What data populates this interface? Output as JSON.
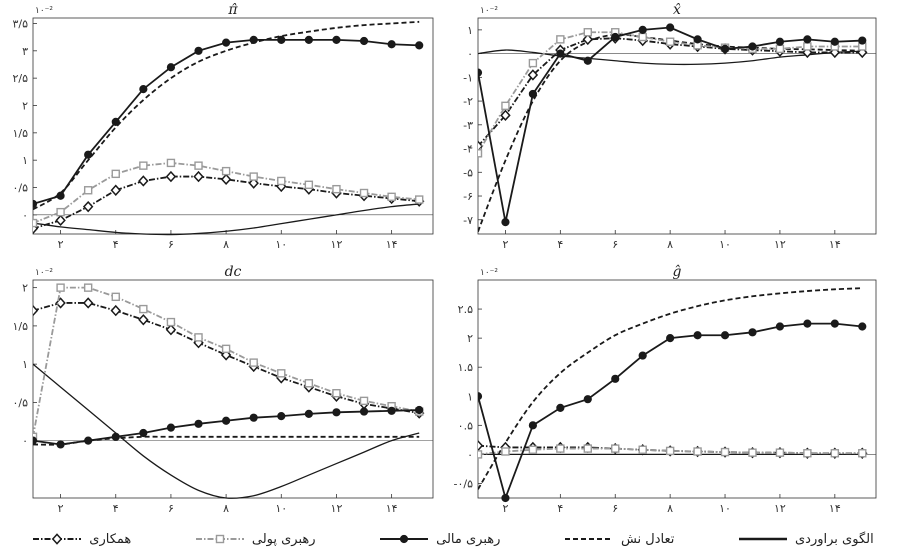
{
  "chart_data": [
    {
      "type": "line",
      "title": "π̂",
      "multiplier": "۱۰⁻²",
      "xlim": [
        1,
        15.5
      ],
      "ylim": [
        -0.35,
        3.6
      ],
      "x_ticks": [
        2,
        4,
        6,
        8,
        10,
        12,
        14
      ],
      "x_tick_labels": [
        "۲",
        "۴",
        "۶",
        "۸",
        "۱۰",
        "۱۲",
        "۱۴"
      ],
      "y_ticks": [
        0,
        0.5,
        1,
        1.5,
        2,
        2.5,
        3,
        3.5
      ],
      "y_tick_labels": [
        "۰",
        "۰/۵",
        "۱",
        "۱/۵",
        "۲",
        "۲/۵",
        "۳",
        "۳/۵"
      ],
      "zero_line": true,
      "series": [
        {
          "key": "baseline",
          "x": [
            1,
            2,
            3,
            4,
            5,
            6,
            7,
            8,
            9,
            10,
            11,
            12,
            13,
            14,
            15
          ],
          "values": [
            -0.15,
            -0.22,
            -0.27,
            -0.32,
            -0.35,
            -0.36,
            -0.34,
            -0.3,
            -0.24,
            -0.16,
            -0.08,
            0.0,
            0.08,
            0.15,
            0.2
          ]
        },
        {
          "key": "nash",
          "x": [
            1,
            2,
            3,
            4,
            5,
            6,
            7,
            8,
            9,
            10,
            11,
            12,
            13,
            14,
            15
          ],
          "values": [
            0.1,
            0.4,
            1.0,
            1.6,
            2.1,
            2.5,
            2.8,
            3.0,
            3.15,
            3.27,
            3.35,
            3.42,
            3.47,
            3.5,
            3.53
          ]
        },
        {
          "key": "fiscal",
          "x": [
            1,
            2,
            3,
            4,
            5,
            6,
            7,
            8,
            9,
            10,
            11,
            12,
            13,
            14,
            15
          ],
          "values": [
            0.2,
            0.35,
            1.1,
            1.7,
            2.3,
            2.7,
            3.0,
            3.15,
            3.2,
            3.2,
            3.2,
            3.2,
            3.18,
            3.12,
            3.1
          ]
        },
        {
          "key": "monetary",
          "x": [
            1,
            2,
            3,
            4,
            5,
            6,
            7,
            8,
            9,
            10,
            11,
            12,
            13,
            14,
            15
          ],
          "values": [
            -0.15,
            0.05,
            0.45,
            0.75,
            0.9,
            0.95,
            0.9,
            0.8,
            0.7,
            0.62,
            0.55,
            0.47,
            0.4,
            0.33,
            0.28
          ]
        },
        {
          "key": "cooperation",
          "x": [
            1,
            2,
            3,
            4,
            5,
            6,
            7,
            8,
            9,
            10,
            11,
            12,
            13,
            14,
            15
          ],
          "values": [
            -0.25,
            -0.1,
            0.15,
            0.45,
            0.62,
            0.7,
            0.7,
            0.65,
            0.58,
            0.52,
            0.47,
            0.4,
            0.35,
            0.3,
            0.25
          ]
        }
      ]
    },
    {
      "type": "line",
      "title": "x̂",
      "multiplier": "۱۰⁻²",
      "xlim": [
        1,
        15.5
      ],
      "ylim": [
        -7.6,
        1.5
      ],
      "x_ticks": [
        2,
        4,
        6,
        8,
        10,
        12,
        14
      ],
      "x_tick_labels": [
        "۲",
        "۴",
        "۶",
        "۸",
        "۱۰",
        "۱۲",
        "۱۴"
      ],
      "y_ticks": [
        -7,
        -6,
        -5,
        -4,
        -3,
        -2,
        -1,
        0,
        1
      ],
      "y_tick_labels": [
        "-۷",
        "-۶",
        "-۵",
        "-۴",
        "-۳",
        "-۲",
        "-۱",
        "۰",
        "۱"
      ],
      "zero_line": true,
      "series": [
        {
          "key": "baseline",
          "x": [
            1,
            2,
            3,
            4,
            5,
            6,
            7,
            8,
            9,
            10,
            11,
            12,
            13,
            14,
            15
          ],
          "values": [
            0.0,
            0.15,
            0.05,
            -0.1,
            -0.2,
            -0.3,
            -0.4,
            -0.45,
            -0.45,
            -0.4,
            -0.3,
            -0.15,
            -0.05,
            0.05,
            0.1
          ]
        },
        {
          "key": "nash",
          "x": [
            1,
            2,
            3,
            4,
            5,
            6,
            7,
            8,
            9,
            10,
            11,
            12,
            13,
            14,
            15
          ],
          "values": [
            -7.5,
            -4.5,
            -2.0,
            -0.3,
            0.5,
            0.8,
            0.7,
            0.55,
            0.4,
            0.3,
            0.25,
            0.2,
            0.18,
            0.15,
            0.12
          ]
        },
        {
          "key": "fiscal",
          "x": [
            1,
            2,
            3,
            4,
            5,
            6,
            7,
            8,
            9,
            10,
            11,
            12,
            13,
            14,
            15
          ],
          "values": [
            -0.8,
            -7.1,
            -1.7,
            0.0,
            -0.3,
            0.7,
            1.0,
            1.1,
            0.6,
            0.2,
            0.3,
            0.5,
            0.6,
            0.5,
            0.55
          ]
        },
        {
          "key": "monetary",
          "x": [
            1,
            2,
            3,
            4,
            5,
            6,
            7,
            8,
            9,
            10,
            11,
            12,
            13,
            14,
            15
          ],
          "values": [
            -4.2,
            -2.2,
            -0.4,
            0.6,
            0.9,
            0.9,
            0.7,
            0.5,
            0.35,
            0.25,
            0.2,
            0.2,
            0.3,
            0.3,
            0.3
          ]
        },
        {
          "key": "cooperation",
          "x": [
            1,
            2,
            3,
            4,
            5,
            6,
            7,
            8,
            9,
            10,
            11,
            12,
            13,
            14,
            15
          ],
          "values": [
            -3.9,
            -2.6,
            -0.9,
            0.15,
            0.6,
            0.65,
            0.55,
            0.4,
            0.3,
            0.2,
            0.15,
            0.1,
            0.05,
            0.05,
            0.05
          ]
        }
      ]
    },
    {
      "type": "line",
      "title": "dc",
      "multiplier": "۱۰⁻²",
      "xlim": [
        1,
        15.5
      ],
      "ylim": [
        -0.75,
        2.1
      ],
      "x_ticks": [
        2,
        4,
        6,
        8,
        10,
        12,
        14
      ],
      "x_tick_labels": [
        "۲",
        "۴",
        "۶",
        "۸",
        "۱۰",
        "۱۲",
        "۱۴"
      ],
      "y_ticks": [
        0,
        0.5,
        1,
        1.5,
        2
      ],
      "y_tick_labels": [
        "۰",
        "۰/۵",
        "۱",
        "۱/۵",
        "۲"
      ],
      "zero_line": true,
      "series": [
        {
          "key": "baseline",
          "x": [
            1,
            2,
            3,
            4,
            5,
            6,
            7,
            8,
            9,
            10,
            11,
            12,
            13,
            14,
            15
          ],
          "values": [
            1.0,
            0.7,
            0.4,
            0.1,
            -0.2,
            -0.45,
            -0.65,
            -0.75,
            -0.72,
            -0.6,
            -0.45,
            -0.3,
            -0.15,
            0.0,
            0.1
          ]
        },
        {
          "key": "nash",
          "x": [
            1,
            2,
            3,
            4,
            5,
            6,
            7,
            8,
            9,
            10,
            11,
            12,
            13,
            14,
            15
          ],
          "values": [
            -0.05,
            -0.05,
            0.0,
            0.03,
            0.05,
            0.05,
            0.05,
            0.05,
            0.05,
            0.05,
            0.05,
            0.05,
            0.05,
            0.05,
            0.05
          ]
        },
        {
          "key": "fiscal",
          "x": [
            1,
            2,
            3,
            4,
            5,
            6,
            7,
            8,
            9,
            10,
            11,
            12,
            13,
            14,
            15
          ],
          "values": [
            0.0,
            -0.05,
            0.0,
            0.05,
            0.1,
            0.17,
            0.22,
            0.26,
            0.3,
            0.32,
            0.35,
            0.37,
            0.38,
            0.39,
            0.4
          ]
        },
        {
          "key": "monetary",
          "x": [
            1,
            2,
            3,
            4,
            5,
            6,
            7,
            8,
            9,
            10,
            11,
            12,
            13,
            14,
            15
          ],
          "values": [
            0.05,
            2.0,
            2.0,
            1.88,
            1.72,
            1.55,
            1.35,
            1.2,
            1.02,
            0.88,
            0.75,
            0.62,
            0.52,
            0.45,
            0.38
          ]
        },
        {
          "key": "cooperation",
          "x": [
            1,
            2,
            3,
            4,
            5,
            6,
            7,
            8,
            9,
            10,
            11,
            12,
            13,
            14,
            15
          ],
          "values": [
            1.7,
            1.8,
            1.8,
            1.7,
            1.58,
            1.45,
            1.28,
            1.12,
            0.97,
            0.82,
            0.7,
            0.58,
            0.48,
            0.42,
            0.36
          ]
        }
      ]
    },
    {
      "type": "line",
      "title": "ĝ",
      "multiplier": "۱۰⁻²",
      "xlim": [
        1,
        15.5
      ],
      "ylim": [
        -0.75,
        3.0
      ],
      "x_ticks": [
        2,
        4,
        6,
        8,
        10,
        12,
        14
      ],
      "x_tick_labels": [
        "۲",
        "۴",
        "۶",
        "۸",
        "۱۰",
        "۱۲",
        "۱۴"
      ],
      "y_ticks": [
        -0.5,
        0,
        0.5,
        1,
        1.5,
        2,
        2.5
      ],
      "y_tick_labels": [
        "-۰/۵",
        "۰",
        "۰.۵",
        "۱",
        "۱.۵",
        "۲",
        "۲.۵"
      ],
      "zero_line": true,
      "series": [
        {
          "key": "baseline",
          "x": [
            1,
            2,
            3,
            4,
            5,
            6,
            7,
            8,
            9,
            10,
            11,
            12,
            13,
            14,
            15
          ],
          "values": [
            0.0,
            0.0,
            0.0,
            0.0,
            0.0,
            0.0,
            0.0,
            0.0,
            0.0,
            0.0,
            0.0,
            0.0,
            0.0,
            0.0,
            0.0
          ]
        },
        {
          "key": "nash",
          "x": [
            1,
            2,
            3,
            4,
            5,
            6,
            7,
            8,
            9,
            10,
            11,
            12,
            13,
            14,
            15
          ],
          "values": [
            -0.6,
            0.2,
            0.9,
            1.4,
            1.75,
            2.05,
            2.25,
            2.42,
            2.55,
            2.65,
            2.72,
            2.77,
            2.81,
            2.84,
            2.86
          ]
        },
        {
          "key": "fiscal",
          "x": [
            1,
            2,
            3,
            4,
            5,
            6,
            7,
            8,
            9,
            10,
            11,
            12,
            13,
            14,
            15
          ],
          "values": [
            1.0,
            -0.75,
            0.5,
            0.8,
            0.95,
            1.3,
            1.7,
            2.0,
            2.05,
            2.05,
            2.1,
            2.2,
            2.25,
            2.25,
            2.2
          ]
        },
        {
          "key": "monetary",
          "x": [
            1,
            2,
            3,
            4,
            5,
            6,
            7,
            8,
            9,
            10,
            11,
            12,
            13,
            14,
            15
          ],
          "values": [
            0.0,
            0.05,
            0.08,
            0.1,
            0.1,
            0.1,
            0.08,
            0.06,
            0.05,
            0.04,
            0.03,
            0.03,
            0.02,
            0.02,
            0.02
          ]
        },
        {
          "key": "cooperation",
          "x": [
            1,
            2,
            3,
            4,
            5,
            6,
            7,
            8,
            9,
            10,
            11,
            12,
            13,
            14,
            15
          ],
          "values": [
            0.15,
            0.12,
            0.12,
            0.12,
            0.12,
            0.1,
            0.08,
            0.06,
            0.05,
            0.04,
            0.03,
            0.03,
            0.02,
            0.02,
            0.02
          ]
        }
      ]
    }
  ],
  "legend": [
    {
      "key": "baseline",
      "label": "الگوی براوردی"
    },
    {
      "key": "nash",
      "label": "تعادل نش"
    },
    {
      "key": "fiscal",
      "label": "رهبری مالی"
    },
    {
      "key": "monetary",
      "label": "رهبری پولی"
    },
    {
      "key": "cooperation",
      "label": "همکاری"
    }
  ],
  "styles": {
    "baseline": {
      "color": "#1a1a1a",
      "dash": "",
      "marker": "none"
    },
    "nash": {
      "color": "#1a1a1a",
      "dash": "5,3",
      "marker": "none"
    },
    "fiscal": {
      "color": "#1a1a1a",
      "dash": "",
      "marker": "circle"
    },
    "monetary": {
      "color": "#9a9a9a",
      "dash": "6,2,1.5,2",
      "marker": "square"
    },
    "cooperation": {
      "color": "#1a1a1a",
      "dash": "6,2,1.5,2",
      "marker": "diamond"
    }
  }
}
